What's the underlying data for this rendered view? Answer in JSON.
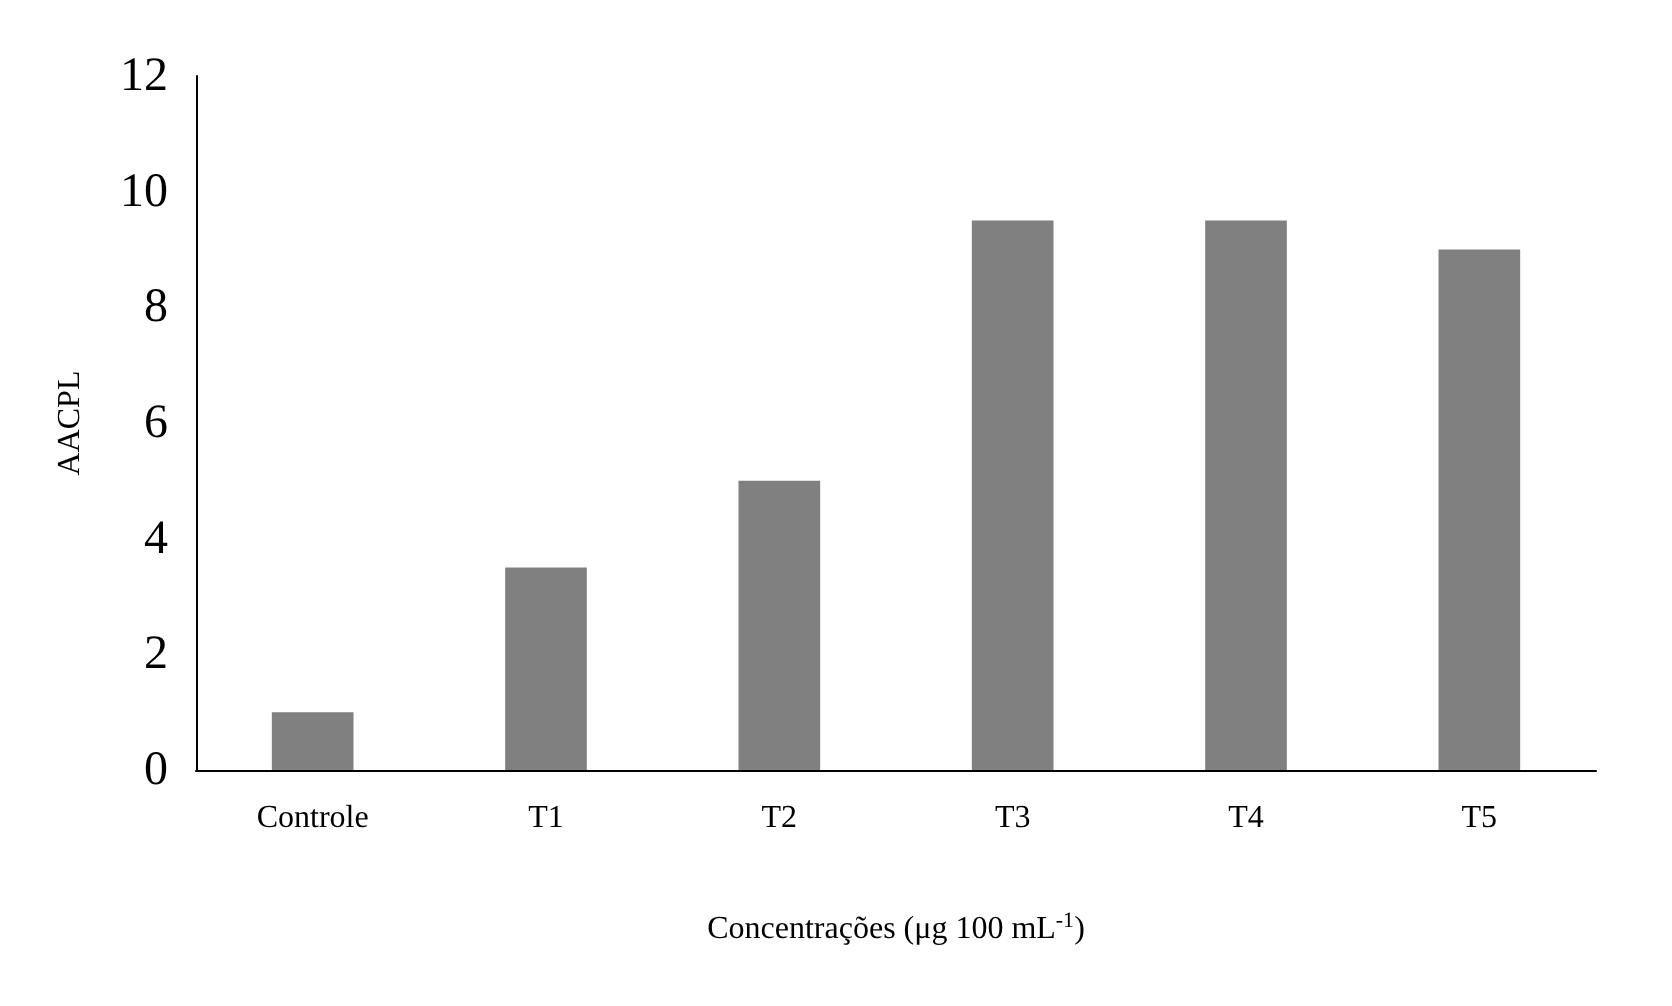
{
  "chart_data": {
    "type": "bar",
    "xlabel": "Concentrações (μg 100 mL$^{-1}$)",
    "ylabel": "AACPL",
    "categories": [
      "Controle",
      "T1",
      "T2",
      "T3",
      "T4",
      "T5"
    ],
    "values": [
      1,
      3.5,
      5,
      9.5,
      9.5,
      9
    ],
    "color": "#808080",
    "ylim": [
      0,
      12
    ],
    "yticks": [
      0,
      2,
      4,
      6,
      8,
      10,
      12
    ],
    "grid": false
  }
}
